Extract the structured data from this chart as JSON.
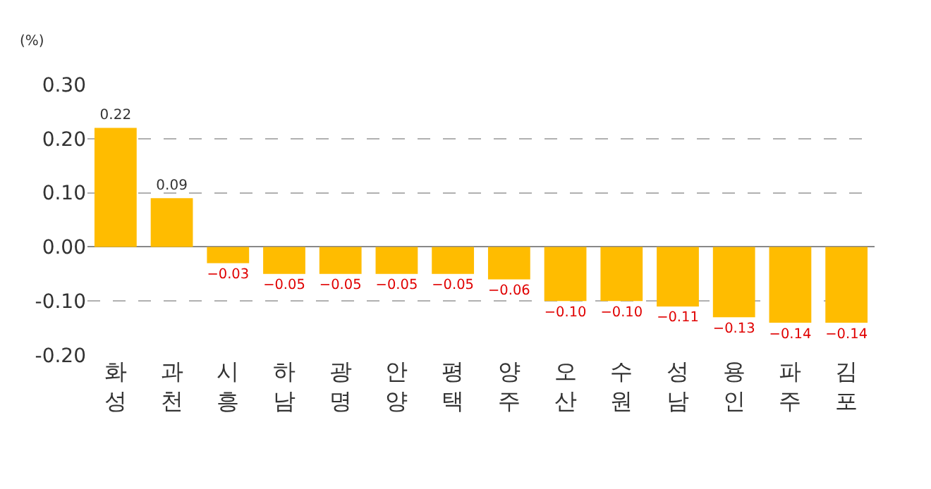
{
  "chart_data": {
    "type": "bar",
    "ylabel": "(%)",
    "categories": [
      "화성",
      "과천",
      "시흥",
      "하남",
      "광명",
      "안양",
      "평택",
      "양주",
      "오산",
      "수원",
      "성남",
      "용인",
      "파주",
      "김포"
    ],
    "values": [
      0.22,
      0.09,
      -0.03,
      -0.05,
      -0.05,
      -0.05,
      -0.05,
      -0.06,
      -0.1,
      -0.1,
      -0.11,
      -0.13,
      -0.14,
      -0.14
    ],
    "value_labels": [
      "0.22",
      "0.09",
      "−0.03",
      "−0.05",
      "−0.05",
      "−0.05",
      "−0.05",
      "−0.06",
      "−0.10",
      "−0.10",
      "−0.11",
      "−0.13",
      "−0.14",
      "−0.14"
    ],
    "color": "#ffbc00",
    "ylim": [
      -0.2,
      0.3
    ],
    "yticks": [
      {
        "value": 0.3,
        "label": "0.30"
      },
      {
        "value": 0.2,
        "label": "0.20"
      },
      {
        "value": 0.1,
        "label": "0.10"
      },
      {
        "value": 0,
        "label": "0.00"
      },
      {
        "value": -0.1,
        "label": "-0.10"
      },
      {
        "value": -0.2,
        "label": "-0.20"
      }
    ],
    "grid": "y",
    "legend": false
  }
}
